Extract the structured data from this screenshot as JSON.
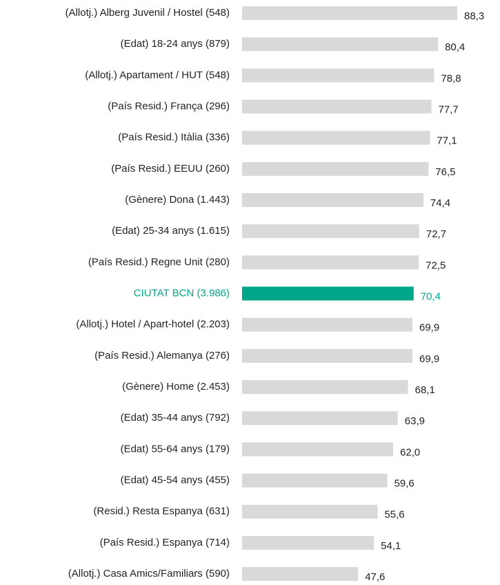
{
  "chart_data": {
    "type": "barh",
    "categories": [
      "(Allotj.) Alberg Juvenil / Hostel  (548)",
      "(Edat) 18-24 anys (879)",
      "(Allotj.) Apartament / HUT (548)",
      "(País Resid.) França (296)",
      "(País Resid.) Itàlia (336)",
      "(País Resid.) EEUU (260)",
      "(Gènere) Dona (1.443)",
      "(Edat) 25-34 anys  (1.615)",
      "(País Resid.) Regne Unit (280)",
      "CIUTAT BCN (3.986)",
      "(Allotj.) Hotel / Apart-hotel (2.203)",
      "(País Resid.) Alemanya (276)",
      "(Gènere) Home (2.453)",
      "(Edat) 35-44 anys (792)",
      "(Edat) 55-64 anys (179)",
      "(Edat) 45-54 anys (455)",
      "(Resid.) Resta Espanya (631)",
      "(País Resid.) Espanya (714)",
      "(Allotj.) Casa Amics/Familiars (590)"
    ],
    "values": [
      88.3,
      80.4,
      78.8,
      77.7,
      77.1,
      76.5,
      74.4,
      72.7,
      72.5,
      70.4,
      69.9,
      69.9,
      68.1,
      63.9,
      62.0,
      59.6,
      55.6,
      54.1,
      47.6
    ],
    "value_labels": [
      "88,3",
      "80,4",
      "78,8",
      "77,7",
      "77,1",
      "76,5",
      "74,4",
      "72,7",
      "72,5",
      "70,4",
      "69,9",
      "69,9",
      "68,1",
      "63,9",
      "62,0",
      "59,6",
      "55,6",
      "54,1",
      "47,6"
    ],
    "colors": [
      "#d9d9d9",
      "#d9d9d9",
      "#d9d9d9",
      "#d9d9d9",
      "#d9d9d9",
      "#d9d9d9",
      "#d9d9d9",
      "#d9d9d9",
      "#d9d9d9",
      "#00a68a",
      "#d9d9d9",
      "#d9d9d9",
      "#d9d9d9",
      "#d9d9d9",
      "#d9d9d9",
      "#d9d9d9",
      "#d9d9d9",
      "#d9d9d9",
      "#d9d9d9"
    ]
  }
}
